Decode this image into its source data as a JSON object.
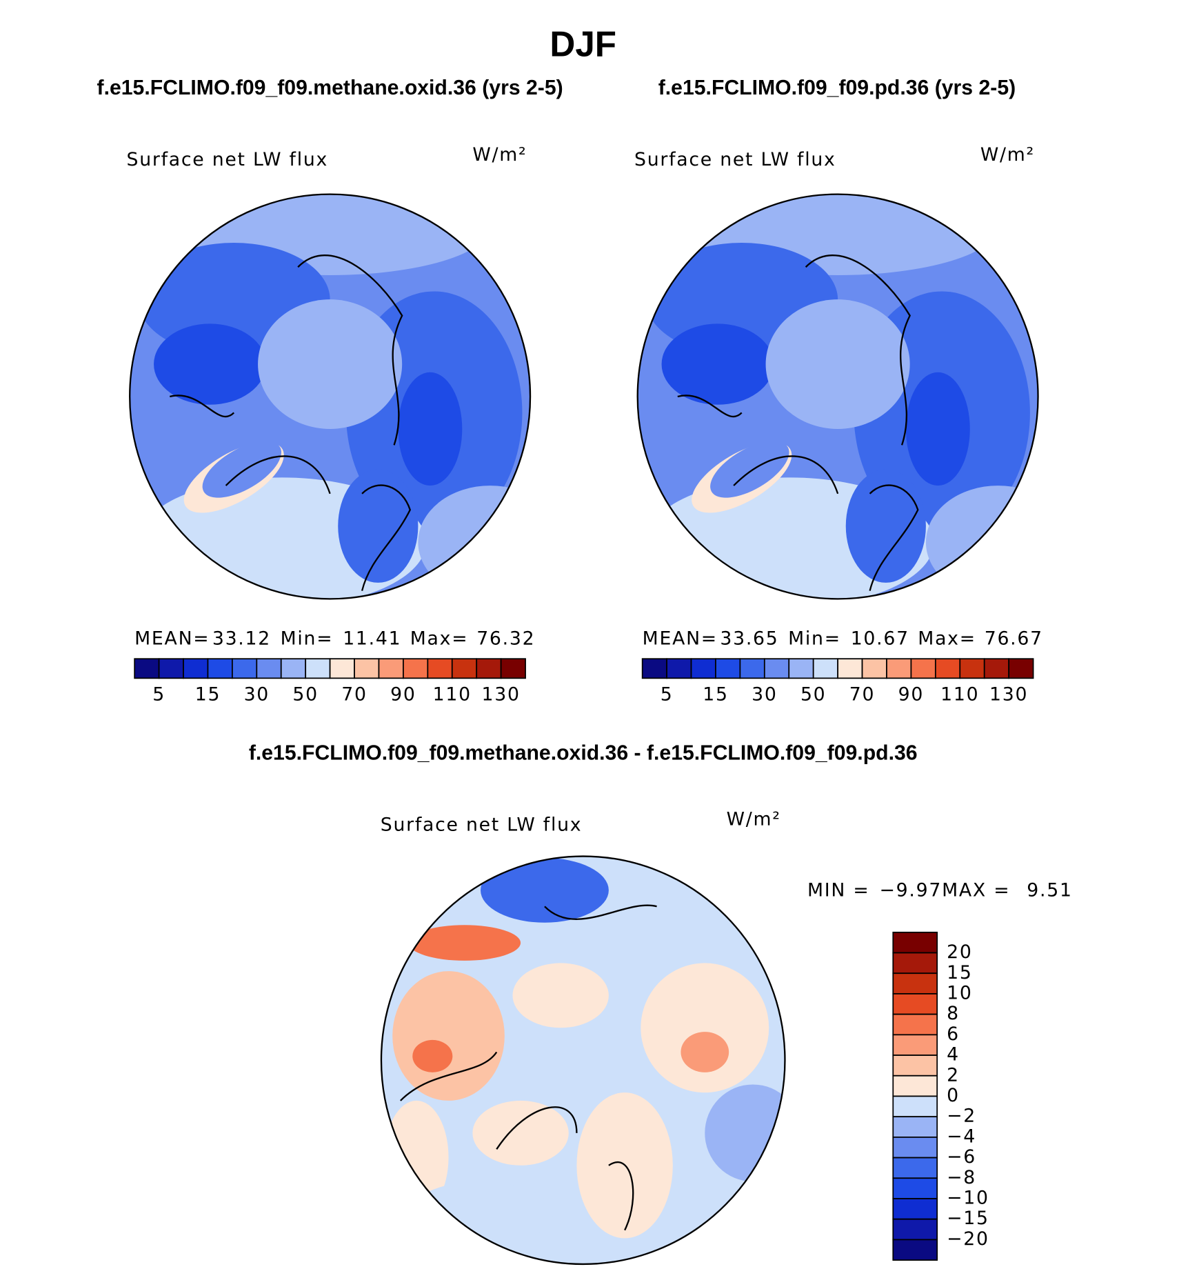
{
  "title": "DJF",
  "panels": [
    {
      "title": "f.e15.FCLIMO.f09_f09.methane.oxid.36 (yrs 2-5)",
      "variable": "Surface net LW flux",
      "units": "W/m²",
      "stats": [
        {
          "label": "MEAN=",
          "value": "33.12"
        },
        {
          "label": "Min=",
          "value": "11.41"
        },
        {
          "label": "Max=",
          "value": "76.32"
        }
      ]
    },
    {
      "title": "f.e15.FCLIMO.f09_f09.pd.36 (yrs 2-5)",
      "variable": "Surface net LW flux",
      "units": "W/m²",
      "stats": [
        {
          "label": "MEAN=",
          "value": "33.65"
        },
        {
          "label": "Min=",
          "value": "10.67"
        },
        {
          "label": "Max=",
          "value": "76.67"
        }
      ]
    }
  ],
  "colorbar": {
    "colors": [
      "#0a0a82",
      "#0f19aa",
      "#0f2dd2",
      "#1e4be6",
      "#3c69eb",
      "#6a8cf0",
      "#9ab4f5",
      "#cde0fa",
      "#fde7d7",
      "#fcc3a5",
      "#fa9b78",
      "#f5734b",
      "#e64b23",
      "#c8320f",
      "#a5190a",
      "#780000"
    ],
    "labels": [
      "5",
      "15",
      "30",
      "50",
      "70",
      "90",
      "110",
      "130"
    ]
  },
  "difference": {
    "title": "f.e15.FCLIMO.f09_f09.methane.oxid.36 - f.e15.FCLIMO.f09_f09.pd.36",
    "variable": "Surface net LW flux",
    "units": "W/m²",
    "stats": [
      {
        "label": "MIN =",
        "value": "−9.97"
      },
      {
        "label": "MAX =",
        "value": "9.51"
      }
    ],
    "colorbar": {
      "colors": [
        "#780000",
        "#a5190a",
        "#c8320f",
        "#e64b23",
        "#f5734b",
        "#fa9b78",
        "#fcc3a5",
        "#fde7d7",
        "#cde0fa",
        "#9ab4f5",
        "#6a8cf0",
        "#3c69eb",
        "#1e4be6",
        "#0f2dd2",
        "#0f19aa",
        "#0a0a82"
      ],
      "labels": [
        "20",
        "15",
        "10",
        "8",
        "6",
        "4",
        "2",
        "0",
        "−2",
        "−4",
        "−6",
        "−8",
        "−10",
        "−15",
        "−20"
      ]
    }
  }
}
